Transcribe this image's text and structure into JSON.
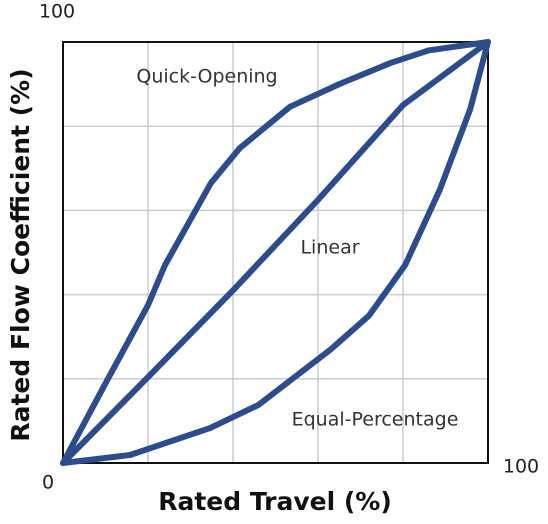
{
  "chart_data": {
    "type": "line",
    "xlabel": "Rated Travel (%)",
    "ylabel": "Rated Flow Coefficient (%)",
    "xlim": [
      0,
      100
    ],
    "ylim": [
      0,
      100
    ],
    "xticks": [
      0,
      100
    ],
    "yticks": [
      100
    ],
    "grid_lines": [
      20,
      40,
      60,
      80
    ],
    "series": [
      {
        "name": "Quick-Opening",
        "color": "#2c4c8c",
        "x": [
          0,
          9.4,
          20,
          24,
          34.8,
          41.6,
          53.4,
          65,
          77,
          86,
          100
        ],
        "values": [
          0,
          17.8,
          37.5,
          47,
          66.5,
          74.8,
          84.6,
          90,
          95,
          98,
          100
        ]
      },
      {
        "name": "Linear",
        "color": "#2c4c8c",
        "x": [
          0,
          20,
          40,
          60,
          80,
          100
        ],
        "values": [
          0,
          20.4,
          41,
          62.5,
          85,
          100
        ]
      },
      {
        "name": "Equal-Percentage",
        "color": "#2c4c8c",
        "x": [
          0,
          15.8,
          34.6,
          46,
          63,
          72,
          80.5,
          88.7,
          95.8,
          100
        ],
        "values": [
          0,
          1.9,
          8.3,
          13.8,
          27,
          35,
          47,
          65,
          84,
          100
        ]
      }
    ]
  }
}
